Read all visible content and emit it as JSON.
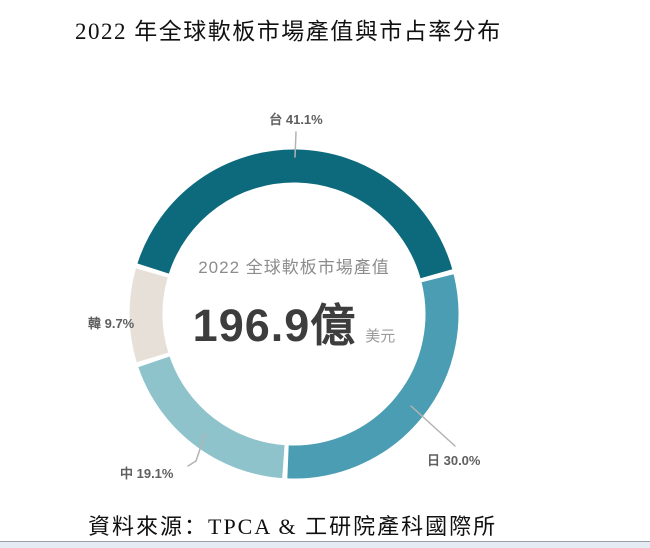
{
  "title": "2022 年全球軟板市場產值與市占率分布",
  "source": "資料來源：TPCA & 工研院產科國際所",
  "chart_data": {
    "type": "pie",
    "subtype": "donut",
    "title": "2022 年全球軟板市場產值與市占率分布",
    "unit": "%",
    "segments": [
      {
        "label": "台",
        "value": 41.1,
        "display": "台 41.1%",
        "color": "#0d6a7d"
      },
      {
        "label": "日",
        "value": 30.0,
        "display": "日 30.0%",
        "color": "#4a9db3"
      },
      {
        "label": "中",
        "value": 19.1,
        "display": "中 19.1%",
        "color": "#8fc3cb"
      },
      {
        "label": "韓",
        "value": 9.7,
        "display": "韓 9.7%",
        "color": "#e6e0d8"
      }
    ],
    "center": {
      "subtitle": "2022 全球軟板市場產值",
      "value": "196.9億",
      "unit": "美元"
    },
    "legend_position": "outside-labels",
    "leader_line_color": "#b3b3b3",
    "source": "資料來源：TPCA & 工研院產科國際所"
  }
}
